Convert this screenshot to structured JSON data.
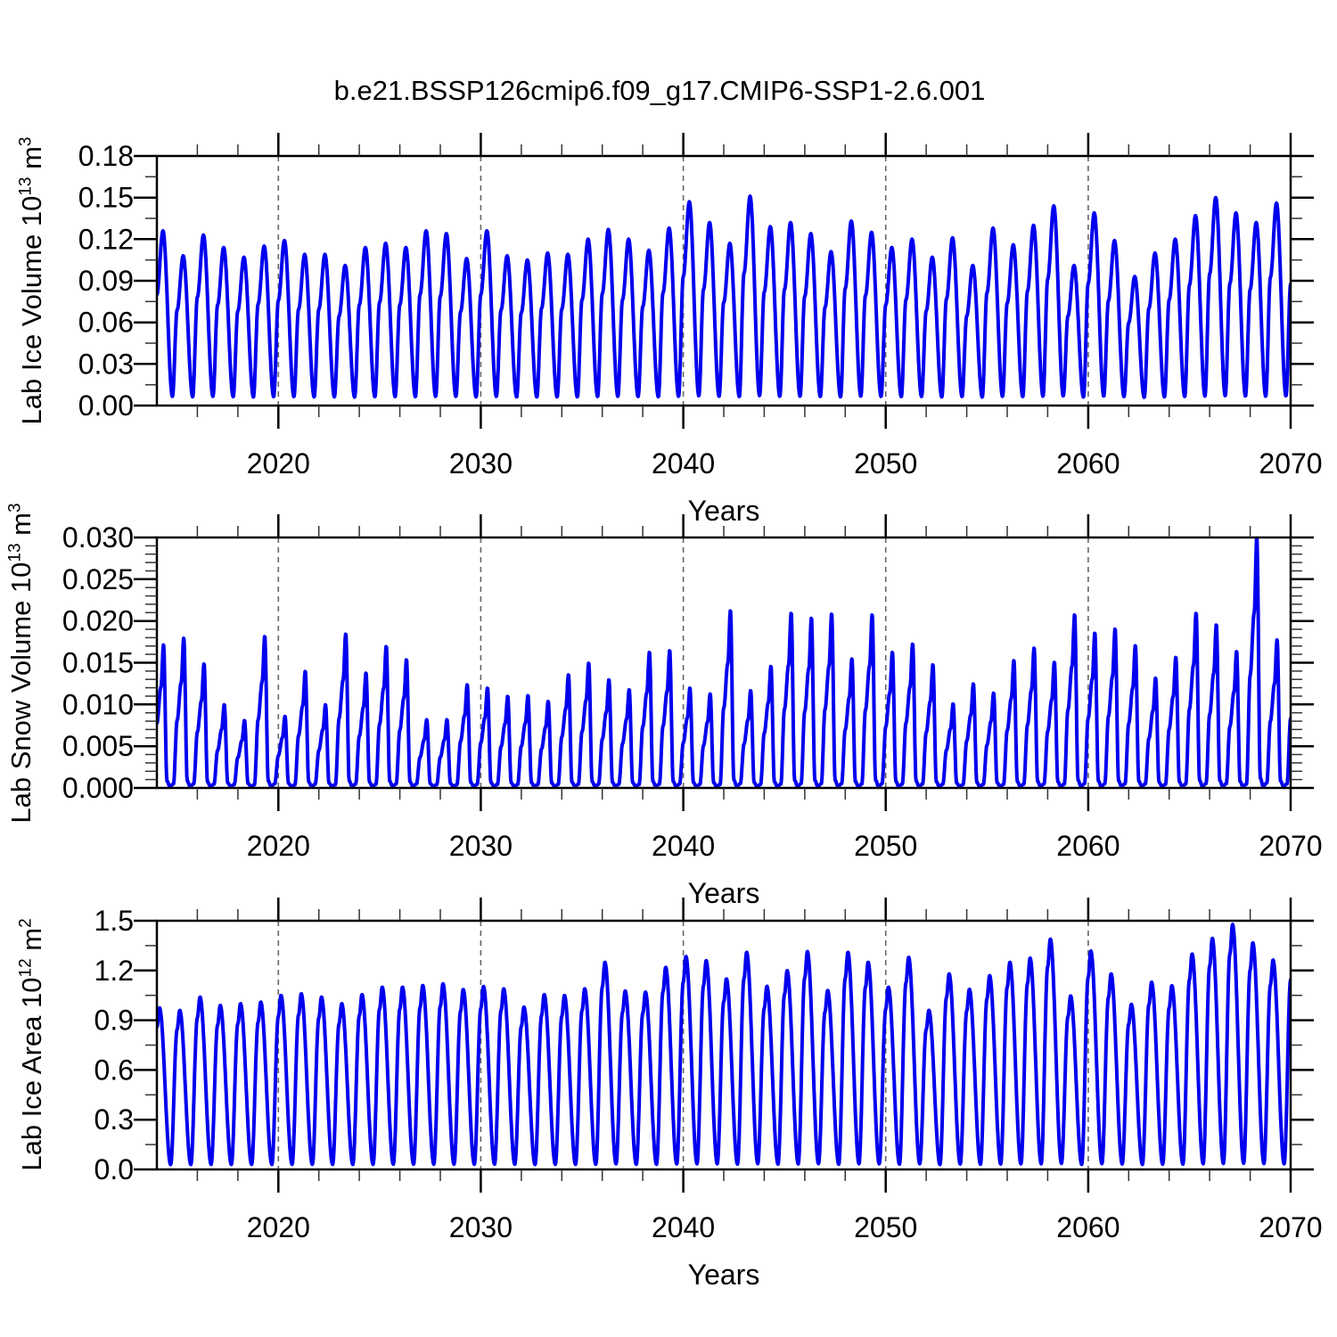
{
  "title": "b.e21.BSSP126cmip6.f09_g17.CMIP6-SSP1-2.6.001",
  "colors": {
    "line": "#0000EE",
    "grid": "#666666",
    "axis": "#000000",
    "minor_tick": "#333333",
    "background": "#FFFFFF",
    "text": "#000000"
  },
  "x_axis": {
    "label": "Years",
    "start_year": 2014,
    "end_year": 2070,
    "major_ticks": [
      2020,
      2030,
      2040,
      2050,
      2060,
      2070
    ],
    "tick_labels": [
      "2020",
      "2030",
      "2040",
      "2050",
      "2060",
      "2070"
    ],
    "minor_step_years": 2,
    "gridline_years": [
      2020,
      2030,
      2040,
      2050,
      2060
    ]
  },
  "panels": [
    {
      "key": "ice-volume",
      "ylabel": {
        "pre": "Lab Ice Volume 10",
        "exp": "13",
        "unit": " m",
        "unit_exp": "3"
      },
      "xlabel": "Years",
      "ylim": [
        0,
        0.18
      ],
      "ytick_values": [
        0,
        0.03,
        0.06,
        0.09,
        0.12,
        0.15,
        0.18
      ],
      "ytick_labels": [
        "0.00",
        "0.03",
        "0.06",
        "0.09",
        "0.12",
        "0.15",
        "0.18"
      ],
      "yminor_step": 0.015
    },
    {
      "key": "snow-volume",
      "ylabel": {
        "pre": "Lab Snow Volume 10",
        "exp": "13",
        "unit": " m",
        "unit_exp": "3"
      },
      "xlabel": "Years",
      "ylim": [
        0,
        0.03
      ],
      "ytick_values": [
        0,
        0.005,
        0.01,
        0.015,
        0.02,
        0.025,
        0.03
      ],
      "ytick_labels": [
        "0.000",
        "0.005",
        "0.010",
        "0.015",
        "0.020",
        "0.025",
        "0.030"
      ],
      "yminor_step": 0.001
    },
    {
      "key": "ice-area",
      "ylabel": {
        "pre": "Lab Ice Area 10",
        "exp": "12",
        "unit": " m",
        "unit_exp": "2"
      },
      "xlabel": "Years",
      "ylim": [
        0,
        1.5
      ],
      "ytick_values": [
        0,
        0.3,
        0.6,
        0.9,
        1.2,
        1.5
      ],
      "ytick_labels": [
        "0.0",
        "0.3",
        "0.6",
        "0.9",
        "1.2",
        "1.5"
      ],
      "yminor_step": 0.15
    }
  ],
  "chart_data": {
    "type": "line",
    "title": "b.e21.BSSP126cmip6.f09_g17.CMIP6-SSP1-2.6.001",
    "x_range": [
      2014,
      2070
    ],
    "xlabel": "Years",
    "legend": "none",
    "grid": "dashed vertical lines at decade years",
    "note": "Three stacked panels of a monthly seasonal cycle (one peak and one trough per year). annual_peaks[i] is the seasonal maximum for year start_year+i; profile_anchors are [phase-of-year, fraction-of-peak, absolute-offset] control points of the within-year cycle.",
    "series": [
      {
        "name": "Lab Ice Volume",
        "units": "10^13 m^3",
        "ylim": [
          0,
          0.18
        ],
        "start_year": 2014,
        "annual_peaks": [
          0.126,
          0.108,
          0.123,
          0.114,
          0.107,
          0.115,
          0.119,
          0.109,
          0.109,
          0.101,
          0.114,
          0.117,
          0.114,
          0.126,
          0.124,
          0.106,
          0.126,
          0.108,
          0.105,
          0.11,
          0.109,
          0.12,
          0.127,
          0.12,
          0.112,
          0.128,
          0.147,
          0.132,
          0.117,
          0.151,
          0.129,
          0.132,
          0.124,
          0.111,
          0.133,
          0.125,
          0.114,
          0.12,
          0.107,
          0.121,
          0.101,
          0.128,
          0.116,
          0.13,
          0.144,
          0.101,
          0.139,
          0.119,
          0.093,
          0.11,
          0.12,
          0.137,
          0.15,
          0.139,
          0.132,
          0.146,
          0.138
        ],
        "seasonal_min_approx": 0.006,
        "peak_month": "May",
        "profile_anchors": [
          [
            0.0,
            0.62,
            0.002
          ],
          [
            0.3,
            1.0,
            0.0
          ],
          [
            0.77,
            0.02,
            0.004
          ]
        ]
      },
      {
        "name": "Lab Snow Volume",
        "units": "10^13 m^3",
        "ylim": [
          0,
          0.03
        ],
        "start_year": 2014,
        "annual_peaks": [
          0.0172,
          0.018,
          0.0149,
          0.01,
          0.0081,
          0.0182,
          0.0086,
          0.014,
          0.01,
          0.0185,
          0.0138,
          0.017,
          0.0154,
          0.0082,
          0.0082,
          0.0124,
          0.012,
          0.011,
          0.0111,
          0.0104,
          0.0136,
          0.015,
          0.013,
          0.0118,
          0.0163,
          0.0165,
          0.012,
          0.0113,
          0.0213,
          0.0117,
          0.0146,
          0.021,
          0.0204,
          0.0209,
          0.0155,
          0.0208,
          0.0163,
          0.0173,
          0.0148,
          0.0101,
          0.0125,
          0.0114,
          0.0153,
          0.0168,
          0.0151,
          0.0208,
          0.0186,
          0.0191,
          0.0171,
          0.0132,
          0.0157,
          0.021,
          0.0196,
          0.0164,
          0.03,
          0.0178,
          0.0185
        ],
        "seasonal_min_approx": 0.0002,
        "peak_month": "May",
        "profile_anchors": [
          [
            0.0,
            0.45,
            0.0
          ],
          [
            0.2,
            0.7,
            0.0
          ],
          [
            0.33,
            1.0,
            0.0
          ],
          [
            0.5,
            0.03,
            0.0003
          ],
          [
            0.64,
            0.0,
            0.0002
          ],
          [
            0.82,
            0.01,
            0.0003
          ]
        ]
      },
      {
        "name": "Lab Ice Area",
        "units": "10^12 m^2",
        "ylim": [
          0,
          1.5
        ],
        "start_year": 2014,
        "annual_peaks": [
          0.975,
          0.96,
          1.04,
          0.99,
          1.0,
          1.01,
          1.05,
          1.06,
          1.04,
          1.0,
          1.055,
          1.1,
          1.1,
          1.11,
          1.12,
          1.086,
          1.104,
          1.09,
          0.98,
          1.055,
          1.05,
          1.09,
          1.25,
          1.077,
          1.07,
          1.22,
          1.285,
          1.26,
          1.15,
          1.31,
          1.105,
          1.2,
          1.315,
          1.08,
          1.31,
          1.25,
          1.1,
          1.28,
          0.96,
          1.18,
          1.087,
          1.17,
          1.25,
          1.275,
          1.39,
          1.047,
          1.318,
          1.18,
          0.996,
          1.13,
          1.109,
          1.3,
          1.394,
          1.478,
          1.368,
          1.264,
          1.3
        ],
        "seasonal_min_approx": 0.03,
        "peak_month": "February",
        "profile_anchors": [
          [
            0.0,
            0.88,
            0.0
          ],
          [
            0.13,
            1.0,
            0.0
          ],
          [
            0.68,
            0.015,
            0.015
          ]
        ]
      }
    ]
  }
}
